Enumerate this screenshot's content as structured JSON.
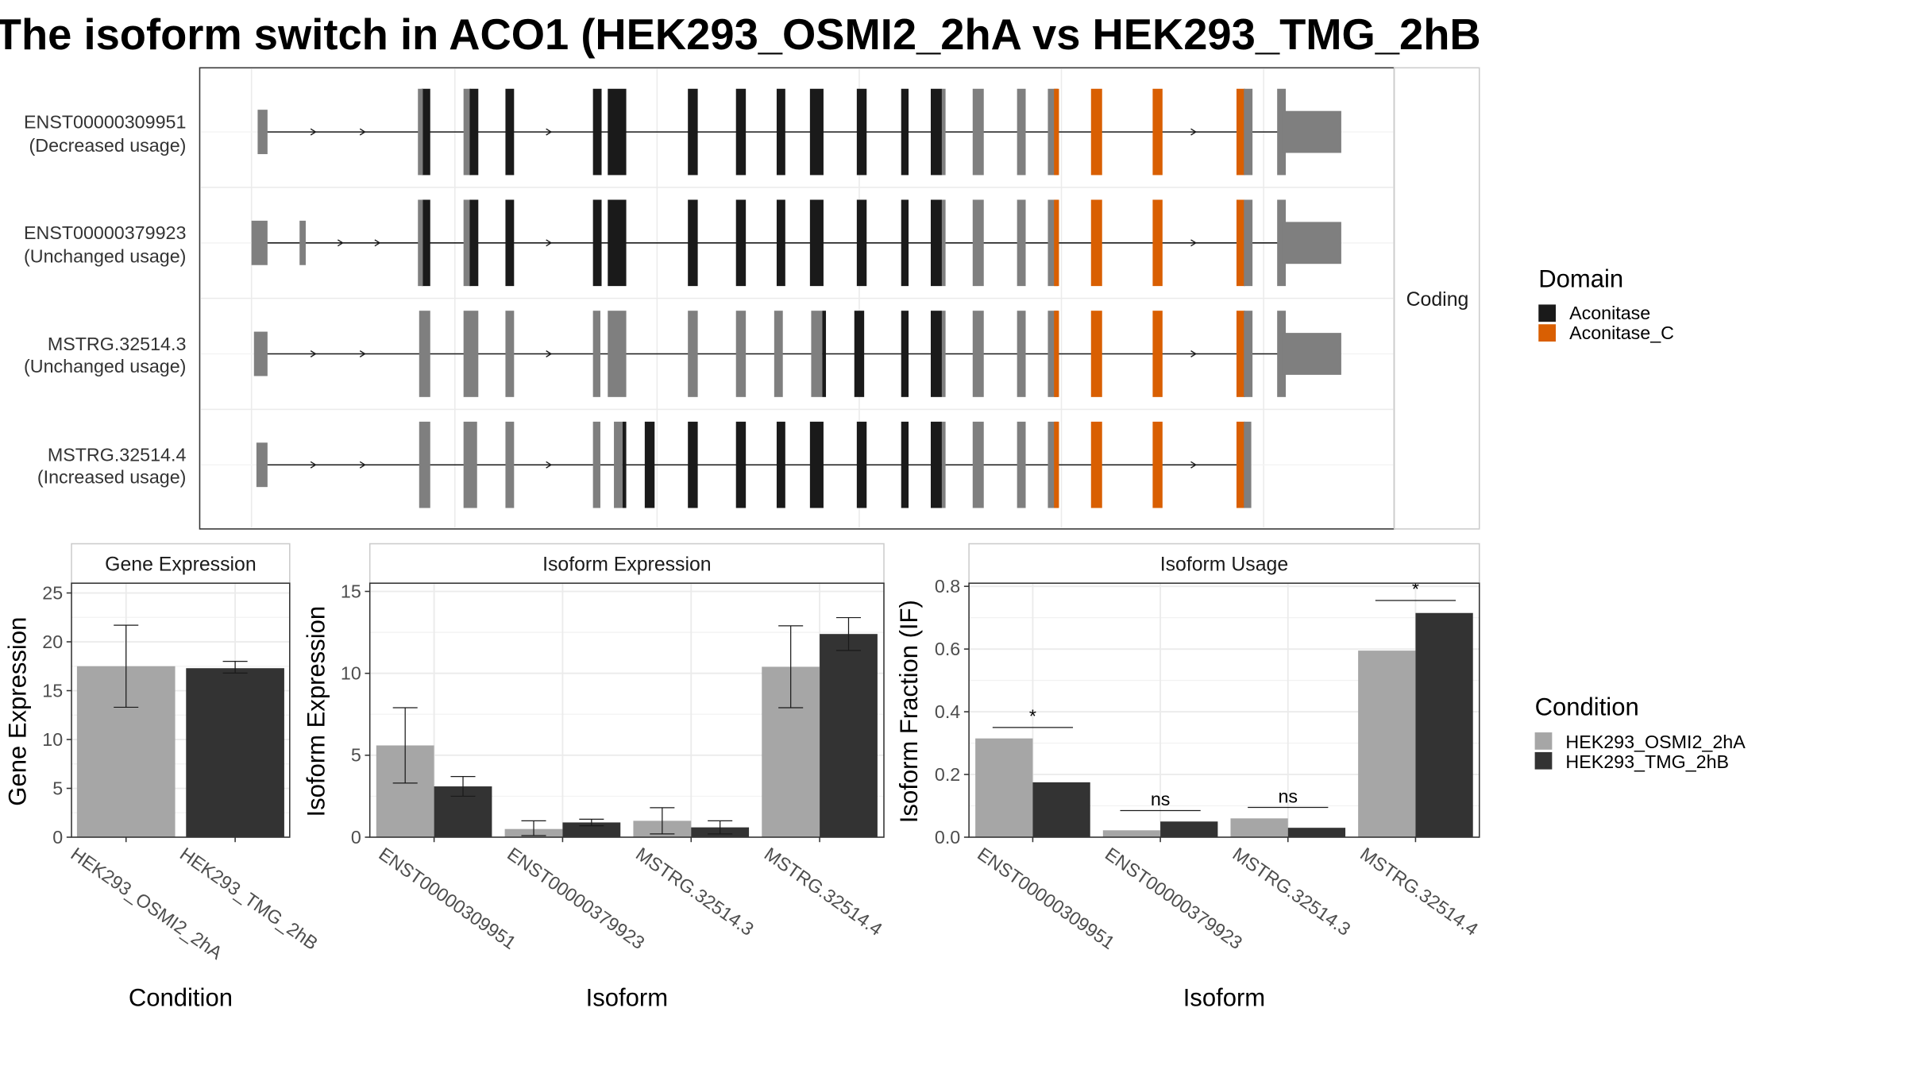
{
  "title": "The isoform switch in ACO1 (HEK293_OSMI2_2hA vs HEK293_TMG_2hB",
  "colors": {
    "utr": "#7f7f7f",
    "cds": "#1a1a1a",
    "domain_aconitase": "#1a1a1a",
    "domain_aconitase_c": "#d95f02",
    "cond_a": "#a6a6a6",
    "cond_b": "#333333"
  },
  "structure": {
    "strip_label": "Coding",
    "transcripts": [
      {
        "id": "ENST00000309951",
        "usage": "(Decreased usage)"
      },
      {
        "id": "ENST00000379923",
        "usage": "(Unchanged usage)"
      },
      {
        "id": "MSTRG.32514.3",
        "usage": "(Unchanged usage)"
      },
      {
        "id": "MSTRG.32514.4",
        "usage": "(Increased usage)"
      }
    ]
  },
  "legend_domain": {
    "title": "Domain",
    "items": [
      {
        "label": "Aconitase",
        "color": "#1a1a1a"
      },
      {
        "label": "Aconitase_C",
        "color": "#d95f02"
      }
    ]
  },
  "legend_condition": {
    "title": "Condition",
    "items": [
      {
        "label": "HEK293_OSMI2_2hA",
        "color": "#a6a6a6"
      },
      {
        "label": "HEK293_TMG_2hB",
        "color": "#333333"
      }
    ]
  },
  "chart_data": [
    {
      "type": "bar",
      "title": "Gene Expression",
      "xlabel": "Condition",
      "ylabel": "Gene Expression",
      "ylim": [
        0,
        26
      ],
      "yticks": [
        0,
        5,
        10,
        15,
        20,
        25
      ],
      "categories": [
        "HEK293_OSMI2_2hA",
        "HEK293_TMG_2hB"
      ],
      "values": [
        17.5,
        17.3
      ],
      "error_low": [
        13.3,
        16.8
      ],
      "error_high": [
        21.7,
        18.0
      ]
    },
    {
      "type": "bar",
      "title": "Isoform Expression",
      "xlabel": "Isoform",
      "ylabel": "Isoform Expression",
      "ylim": [
        0,
        15.5
      ],
      "yticks": [
        0,
        5,
        10,
        15
      ],
      "categories": [
        "ENST00000309951",
        "ENST00000379923",
        "MSTRG.32514.3",
        "MSTRG.32514.4"
      ],
      "series": [
        {
          "name": "HEK293_OSMI2_2hA",
          "values": [
            5.6,
            0.5,
            1.0,
            10.4
          ],
          "error_low": [
            3.3,
            0.1,
            0.2,
            7.9
          ],
          "error_high": [
            7.9,
            1.0,
            1.8,
            12.9
          ]
        },
        {
          "name": "HEK293_TMG_2hB",
          "values": [
            3.1,
            0.9,
            0.6,
            12.4
          ],
          "error_low": [
            2.5,
            0.7,
            0.2,
            11.4
          ],
          "error_high": [
            3.7,
            1.1,
            1.0,
            13.4
          ]
        }
      ]
    },
    {
      "type": "bar",
      "title": "Isoform Usage",
      "xlabel": "Isoform",
      "ylabel": "Isoform Fraction (IF)",
      "ylim": [
        0,
        0.81
      ],
      "yticks": [
        "0.0",
        "0.2",
        "0.4",
        "0.6",
        "0.8"
      ],
      "categories": [
        "ENST00000309951",
        "ENST00000379923",
        "MSTRG.32514.3",
        "MSTRG.32514.4"
      ],
      "series": [
        {
          "name": "HEK293_OSMI2_2hA",
          "values": [
            0.315,
            0.022,
            0.06,
            0.595
          ]
        },
        {
          "name": "HEK293_TMG_2hB",
          "values": [
            0.175,
            0.05,
            0.03,
            0.715
          ]
        }
      ],
      "significance": [
        "*",
        "ns",
        "ns",
        "*"
      ],
      "significance_y": [
        0.35,
        0.085,
        0.095,
        0.755
      ]
    }
  ]
}
